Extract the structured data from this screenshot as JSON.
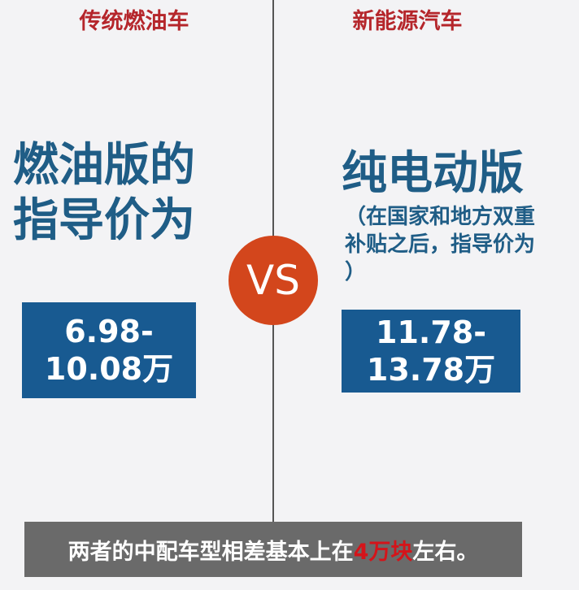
{
  "left": {
    "header": "传统燃油车",
    "title_lines": [
      "燃油版的",
      "指导价为"
    ],
    "price_lines": [
      "6.98-",
      "10.08万"
    ]
  },
  "right": {
    "header": "新能源汽车",
    "title": "纯电动版",
    "subtitle_lines": [
      "（在国家和地方双重",
      "补贴之后，指导价为",
      "）"
    ],
    "price_lines": [
      "11.78-",
      "13.78万"
    ]
  },
  "vs_label": "VS",
  "summary": {
    "before": "两者的中配车型相差基本上在",
    "highlight": "4万块",
    "after": "左右。"
  },
  "colors": {
    "header_red": "#b5262b",
    "title_blue": "#1f5d86",
    "box_blue": "#185a91",
    "vs_orange": "#d3461c",
    "summary_gray": "#6a6a6a",
    "highlight_red": "#d4141a"
  }
}
